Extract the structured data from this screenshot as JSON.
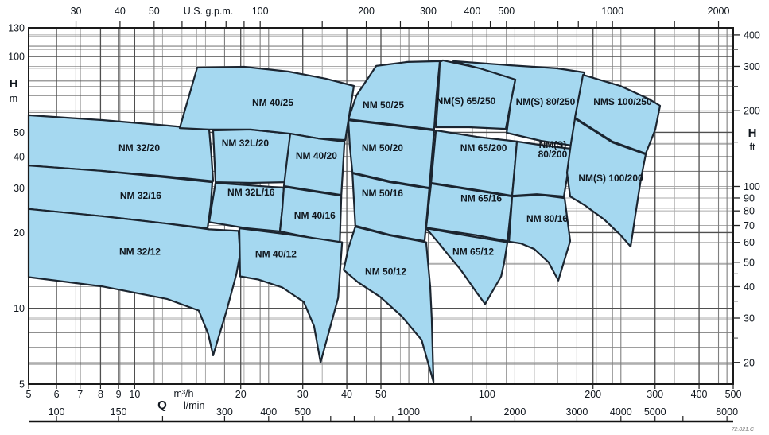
{
  "chart_data": {
    "type": "area",
    "description_labels": {
      "top_axis_unit": "U.S. g.p.m.",
      "bottom_axis_q": "Q",
      "bottom_axis_unit_m3h": "m³/h",
      "bottom_axis_unit_lmin": "l/min",
      "left_axis_symbol": "H",
      "left_axis_unit": "m",
      "right_axis_symbol": "H",
      "right_axis_unit": "ft",
      "drawing_code": "72.021.C"
    },
    "axes": {
      "x_m3h": {
        "min": 5,
        "max": 500,
        "labeled": [
          5,
          6,
          7,
          8,
          9,
          10,
          20,
          30,
          40,
          50,
          100,
          200,
          300,
          400,
          500
        ]
      },
      "x_lmin": {
        "labeled": [
          100,
          150,
          300,
          400,
          500,
          1000,
          2000,
          3000,
          4000,
          5000,
          8000
        ],
        "ticks": [
          100,
          150,
          200,
          300,
          400,
          500,
          600,
          700,
          800,
          900,
          1000,
          1500,
          2000,
          3000,
          4000,
          5000,
          6000,
          8000
        ]
      },
      "x_gpm": {
        "labeled": [
          30,
          40,
          50,
          100,
          200,
          300,
          400,
          500,
          1000,
          2000
        ],
        "ticks": [
          30,
          40,
          50,
          60,
          70,
          80,
          90,
          100,
          150,
          200,
          250,
          300,
          350,
          400,
          450,
          500,
          600,
          700,
          800,
          900,
          1000,
          1500,
          2000
        ]
      },
      "y_m": {
        "min": 5,
        "max": 130,
        "labeled": [
          130,
          100,
          50,
          40,
          30,
          20,
          10,
          5
        ]
      },
      "y_ft": {
        "labeled": [
          400,
          300,
          200,
          100,
          90,
          80,
          70,
          60,
          50,
          40,
          30,
          20
        ],
        "minor_ticks": [
          350,
          250,
          150,
          45,
          35,
          25
        ]
      }
    },
    "gridlines": {
      "v_dark_m3h": [
        5,
        6,
        7,
        8,
        9,
        10,
        20,
        30,
        40,
        50,
        100,
        200,
        300,
        400,
        500
      ],
      "v_med_m3h": [
        6.81,
        9.08,
        11.36,
        22.71,
        45.42,
        68.14,
        90.85,
        113.56,
        227.1,
        454.2,
        18,
        24,
        60,
        120,
        180,
        240,
        480
      ],
      "v_light_m3h": [
        12,
        13.62,
        15,
        15.89,
        20.44,
        34.07,
        56.78,
        136.3,
        158.9,
        204.4,
        340.7
      ],
      "h_dark_m": [
        5,
        10,
        20,
        30,
        40,
        50,
        100,
        130
      ],
      "h_med_m": [
        6,
        7,
        8,
        9,
        15,
        25,
        35,
        45,
        60,
        70,
        80,
        90,
        110,
        120
      ],
      "h_light_m": [
        6.096,
        9.144,
        12.192,
        15.24,
        18.288,
        21.336,
        24.384,
        27.432,
        30.48,
        45.72,
        60.96,
        76.2,
        91.44,
        106.68,
        121.92
      ]
    },
    "colors": {
      "region_fill": "#a5d8f0",
      "region_stroke": "#1b2530",
      "grid_dark": "#4f4f4f",
      "grid_med": "#7f7f7f",
      "grid_light": "#ababab",
      "border": "#1a1a1a",
      "text": "#10161d"
    },
    "regions": [
      {
        "label": "NM 32/20",
        "label_pos": [
          10.3,
          43.4
        ],
        "points": [
          [
            5,
            58.5
          ],
          [
            8.15,
            55.9
          ],
          [
            12.35,
            53.2
          ],
          [
            16.27,
            51.3
          ],
          [
            16.52,
            40.3
          ],
          [
            16.7,
            32
          ],
          [
            12.35,
            33.4
          ],
          [
            8.15,
            35.1
          ],
          [
            5,
            36.9
          ]
        ]
      },
      {
        "label": "NM 32L/20",
        "label_pos": [
          20.6,
          45.3
        ],
        "points": [
          [
            16.7,
            50.9
          ],
          [
            21.32,
            51.3
          ],
          [
            27.65,
            49.4
          ],
          [
            27.22,
            39.5
          ],
          [
            26.79,
            31.7
          ],
          [
            21.32,
            31.5
          ],
          [
            16.96,
            31.7
          ]
        ]
      },
      {
        "label": "NM 32/16",
        "label_pos": [
          10.4,
          28
        ],
        "points": [
          [
            5,
            36.9
          ],
          [
            8.15,
            35.1
          ],
          [
            12.35,
            33.1
          ],
          [
            16.61,
            31.7
          ],
          [
            16.44,
            25.7
          ],
          [
            16.1,
            20.8
          ],
          [
            12.35,
            21.7
          ],
          [
            8.15,
            23.2
          ],
          [
            5,
            24.8
          ]
        ]
      },
      {
        "label": "NM 32L/16",
        "label_pos": [
          21.4,
          28.9
        ],
        "points": [
          [
            16.96,
            31.5
          ],
          [
            21.32,
            30.8
          ],
          [
            26.52,
            30.1
          ],
          [
            26.24,
            25
          ],
          [
            25.84,
            20.2
          ],
          [
            20.77,
            20.8
          ],
          [
            16.27,
            22
          ]
        ]
      },
      {
        "label": "NM 32/12",
        "label_pos": [
          10.35,
          16.8
        ],
        "points": [
          [
            5,
            24.8
          ],
          [
            8.15,
            23.2
          ],
          [
            12.35,
            21.7
          ],
          [
            16.27,
            20.6
          ],
          [
            19.72,
            20.3
          ],
          [
            19.92,
            16.4
          ],
          [
            19.42,
            13.6
          ],
          [
            18.24,
            9.8
          ],
          [
            16.7,
            6.5
          ],
          [
            16.18,
            7.9
          ],
          [
            15.2,
            9.8
          ],
          [
            12.35,
            10.9
          ],
          [
            8.15,
            12.2
          ],
          [
            5,
            13.3
          ]
        ]
      },
      {
        "label": "NM 40/25",
        "label_pos": [
          24.66,
          65.6
        ],
        "points": [
          [
            13.42,
            52
          ],
          [
            15.05,
            90.4
          ],
          [
            20.45,
            91.1
          ],
          [
            27.36,
            87.2
          ],
          [
            34.9,
            81.7
          ],
          [
            41.9,
            76.5
          ],
          [
            40.8,
            60.6
          ],
          [
            39.6,
            46.6
          ],
          [
            33.2,
            47.3
          ],
          [
            27.65,
            49.4
          ],
          [
            21.32,
            51.3
          ],
          [
            16.27,
            51.3
          ]
        ]
      },
      {
        "label": "NM 40/20",
        "label_pos": [
          32.8,
          40.3
        ],
        "points": [
          [
            27.65,
            49.4
          ],
          [
            33.2,
            47.3
          ],
          [
            39.4,
            46
          ],
          [
            39,
            35.9
          ],
          [
            38.6,
            28.2
          ],
          [
            32.3,
            29.3
          ],
          [
            26.52,
            30.6
          ],
          [
            27.07,
            38.9
          ]
        ]
      },
      {
        "label": "NM 40/16",
        "label_pos": [
          32.45,
          23.4
        ],
        "points": [
          [
            26.52,
            30.4
          ],
          [
            32.3,
            29.1
          ],
          [
            38.6,
            28
          ],
          [
            38.4,
            22.4
          ],
          [
            38.2,
            17.9
          ],
          [
            31.5,
            19.1
          ],
          [
            25.84,
            20.2
          ],
          [
            26.24,
            24.8
          ]
        ]
      },
      {
        "label": "NM 40/12",
        "label_pos": [
          25.17,
          16.4
        ],
        "points": [
          [
            19.82,
            20.8
          ],
          [
            25.57,
            19.9
          ],
          [
            31.5,
            19.1
          ],
          [
            38.8,
            18.3
          ],
          [
            37.8,
            11
          ],
          [
            33.7,
            6.1
          ],
          [
            32.3,
            8.5
          ],
          [
            30.2,
            10.6
          ],
          [
            26.24,
            12.1
          ],
          [
            22.46,
            13
          ],
          [
            19.92,
            13.4
          ]
        ]
      },
      {
        "label": "NM 50/25",
        "label_pos": [
          50.8,
          64.2
        ],
        "points": [
          [
            40.4,
            56.3
          ],
          [
            42.6,
            70.1
          ],
          [
            48.5,
            91.8
          ],
          [
            59.4,
            95.2
          ],
          [
            73.5,
            95.9
          ],
          [
            71.9,
            70.1
          ],
          [
            70.8,
            51.3
          ],
          [
            52.9,
            53.9
          ]
        ]
      },
      {
        "label": "NM 50/20",
        "label_pos": [
          50.5,
          43.4
        ],
        "points": [
          [
            40.4,
            55.9
          ],
          [
            52.9,
            53.5
          ],
          [
            70.8,
            50.9
          ],
          [
            69.7,
            39.2
          ],
          [
            68.6,
            30.1
          ],
          [
            52.9,
            32
          ],
          [
            41.5,
            34.6
          ],
          [
            40.8,
            44
          ]
        ]
      },
      {
        "label": "NM 50/16",
        "label_pos": [
          50.5,
          28.7
        ],
        "points": [
          [
            41.5,
            34.4
          ],
          [
            52.9,
            31.7
          ],
          [
            68.6,
            29.9
          ],
          [
            67.6,
            23.5
          ],
          [
            66.5,
            18.5
          ],
          [
            52.9,
            19.6
          ],
          [
            42.3,
            21.3
          ],
          [
            41.9,
            27
          ]
        ]
      },
      {
        "label": "NM 50/12",
        "label_pos": [
          51.6,
          14
        ],
        "points": [
          [
            42.3,
            21.1
          ],
          [
            52.9,
            19.5
          ],
          [
            67.2,
            18.3
          ],
          [
            68,
            15.2
          ],
          [
            69,
            12.2
          ],
          [
            69.7,
            9.1
          ],
          [
            70.5,
            5.1
          ],
          [
            65.2,
            7.5
          ],
          [
            57.3,
            9.3
          ],
          [
            49.8,
            11.1
          ],
          [
            43,
            12.7
          ],
          [
            39.2,
            14.2
          ],
          [
            40.4,
            17.3
          ]
        ]
      },
      {
        "label": "NM(S) 65/250",
        "label_pos": [
          87.2,
          66.6
        ],
        "points": [
          [
            75,
            96.6
          ],
          [
            93.7,
            90.4
          ],
          [
            120.4,
            81.7
          ],
          [
            116.7,
            65.2
          ],
          [
            113.1,
            51.6
          ],
          [
            89,
            52.4
          ],
          [
            71.6,
            52.4
          ],
          [
            72.7,
            70.1
          ],
          [
            73.5,
            95.2
          ]
        ]
      },
      {
        "label": "NM 65/200",
        "label_pos": [
          97.8,
          43.4
        ],
        "points": [
          [
            71.6,
            50.9
          ],
          [
            93.7,
            48
          ],
          [
            121.6,
            46
          ],
          [
            119.8,
            35.9
          ],
          [
            117.9,
            28
          ],
          [
            93.7,
            29.5
          ],
          [
            69.4,
            31.5
          ],
          [
            70.5,
            40
          ]
        ]
      },
      {
        "label": "NM 65/16",
        "label_pos": [
          96.3,
          27.3
        ],
        "points": [
          [
            69.4,
            31.3
          ],
          [
            93.7,
            29.3
          ],
          [
            117.9,
            27.8
          ],
          [
            116.1,
            22.7
          ],
          [
            114.3,
            18.5
          ],
          [
            93.7,
            19.5
          ],
          [
            67.2,
            20.9
          ],
          [
            68.3,
            25.7
          ]
        ]
      },
      {
        "label": "NM 65/12",
        "label_pos": [
          91.4,
          16.8
        ],
        "points": [
          [
            67.2,
            20.8
          ],
          [
            86.7,
            19.5
          ],
          [
            114.3,
            18.3
          ],
          [
            111.9,
            15.2
          ],
          [
            109.7,
            13.4
          ],
          [
            98.8,
            10.4
          ],
          [
            93.7,
            11.5
          ],
          [
            88.1,
            13
          ],
          [
            83.7,
            14.4
          ],
          [
            78.2,
            16.1
          ],
          [
            73.1,
            18.1
          ],
          [
            69.7,
            19.6
          ]
        ]
      },
      {
        "label": "NM(S) 80/250",
        "label_pos": [
          146.6,
          66.1
        ],
        "points": [
          [
            80.3,
            95.9
          ],
          [
            115.5,
            92.4
          ],
          [
            157.7,
            89.8
          ],
          [
            189.2,
            86.5
          ],
          [
            183.4,
            65.2
          ],
          [
            175,
            44.3
          ],
          [
            142.1,
            46.3
          ],
          [
            113.7,
            49.8
          ],
          [
            116.7,
            65.2
          ],
          [
            120.4,
            81.1
          ],
          [
            97.2,
            89.1
          ]
        ]
      },
      {
        "label": "NM(S) 80/200",
        "label_lines": [
          "NM(S)",
          "80/200"
        ],
        "label_pos": [
          153.6,
          43
        ],
        "points": [
          [
            121.6,
            46
          ],
          [
            145.9,
            44.3
          ],
          [
            175,
            43
          ],
          [
            169.6,
            34.6
          ],
          [
            165.3,
            27.8
          ],
          [
            138.5,
            28.4
          ],
          [
            117.9,
            28
          ],
          [
            119.8,
            35.9
          ]
        ]
      },
      {
        "label": "NM 80/16",
        "label_pos": [
          148.2,
          22.7
        ],
        "points": [
          [
            117.9,
            27.8
          ],
          [
            142.1,
            28.2
          ],
          [
            166.1,
            27.4
          ],
          [
            169.6,
            21.9
          ],
          [
            172.3,
            18.5
          ],
          [
            159.4,
            12.9
          ],
          [
            149.7,
            15.2
          ],
          [
            136.3,
            17.2
          ],
          [
            124.8,
            18.1
          ],
          [
            115.5,
            18.4
          ],
          [
            116.7,
            22.7
          ]
        ]
      },
      {
        "label": "NMS 100/250",
        "label_pos": [
          242.7,
          66.1
        ],
        "points": [
          [
            187.3,
            84.6
          ],
          [
            239,
            76.5
          ],
          [
            286.7,
            68.1
          ],
          [
            310,
            63.8
          ],
          [
            300.4,
            51.3
          ],
          [
            282.3,
            41.2
          ],
          [
            227,
            46
          ],
          [
            177.7,
            57.2
          ]
        ]
      },
      {
        "label": "NM(S) 100/200",
        "label_pos": [
          224.6,
          32.9
        ],
        "points": [
          [
            177.7,
            56.7
          ],
          [
            227,
            45.6
          ],
          [
            282.3,
            40.9
          ],
          [
            273.6,
            32.7
          ],
          [
            263.8,
            23.5
          ],
          [
            255.7,
            17.6
          ],
          [
            239,
            19.6
          ],
          [
            215.4,
            22.5
          ],
          [
            189.2,
            25.7
          ],
          [
            172.3,
            27.8
          ],
          [
            168.7,
            34.6
          ],
          [
            173.2,
            45.3
          ]
        ]
      }
    ]
  }
}
